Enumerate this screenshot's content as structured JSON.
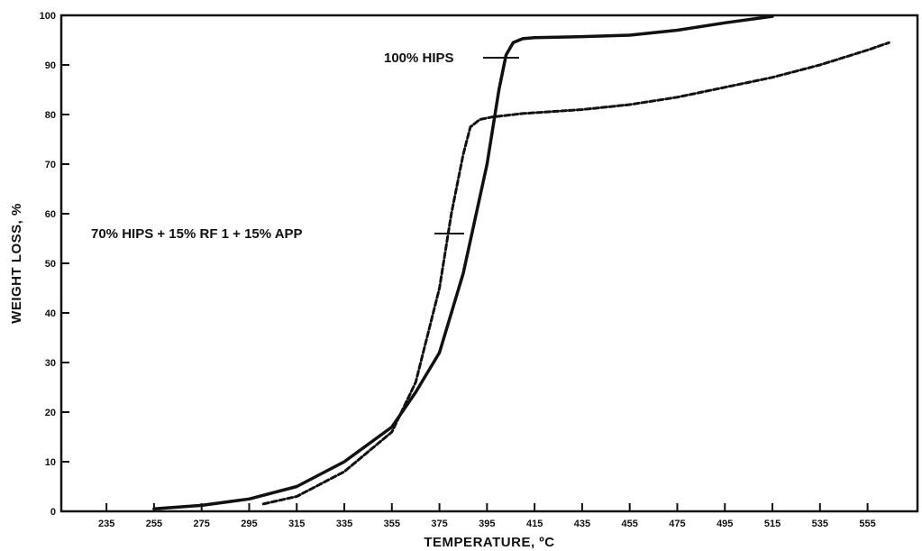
{
  "chart_data": {
    "type": "line",
    "title": "",
    "xlabel": "TEMPERATURE, ºC",
    "ylabel": "WEIGHT LOSS, %",
    "xlim": [
      216,
      576
    ],
    "ylim": [
      0,
      100
    ],
    "x_ticks": [
      235,
      255,
      275,
      295,
      315,
      335,
      355,
      375,
      395,
      415,
      435,
      455,
      475,
      495,
      515,
      535,
      555
    ],
    "y_ticks": [
      0,
      10,
      20,
      30,
      40,
      50,
      60,
      70,
      80,
      90,
      100
    ],
    "grid": false,
    "series": [
      {
        "name": "100% HIPS",
        "style": "solid",
        "color": "#111111",
        "x": [
          255,
          275,
          295,
          315,
          335,
          355,
          365,
          375,
          385,
          395,
          400,
          403,
          406,
          410,
          415,
          435,
          455,
          475,
          495,
          515
        ],
        "y": [
          0.5,
          1.2,
          2.5,
          5,
          10,
          17,
          24,
          32,
          48,
          70,
          85,
          92,
          94.5,
          95.3,
          95.5,
          95.7,
          96,
          97,
          98.5,
          99.8
        ]
      },
      {
        "name": "70% HIPS + 15% RF 1 + 15% APP",
        "style": "dashed",
        "color": "#111111",
        "x": [
          301,
          315,
          335,
          355,
          365,
          375,
          380,
          385,
          388,
          392,
          397,
          410,
          435,
          455,
          475,
          495,
          515,
          535,
          555,
          564
        ],
        "y": [
          1.5,
          3,
          8,
          16,
          26,
          45,
          60,
          72,
          77.5,
          79,
          79.5,
          80.2,
          81,
          82,
          83.5,
          85.5,
          87.5,
          90,
          93,
          94.5
        ]
      }
    ]
  }
}
